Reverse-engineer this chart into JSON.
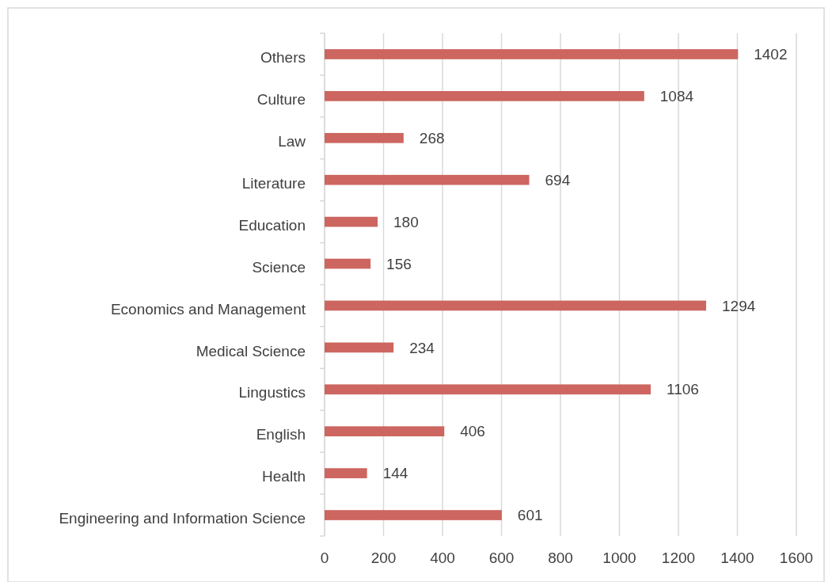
{
  "chart_data": {
    "type": "bar",
    "orientation": "horizontal",
    "categories": [
      "Others",
      "Culture",
      "Law",
      "Literature",
      "Education",
      "Science",
      "Economics and Management",
      "Medical Science",
      "Lingustics",
      "English",
      "Health",
      "Engineering and Information Science"
    ],
    "values": [
      1402,
      1084,
      268,
      694,
      180,
      156,
      1294,
      234,
      1106,
      406,
      144,
      601
    ],
    "color": "#cd6660",
    "xlim": [
      0,
      1600
    ],
    "xticks": [
      0,
      200,
      400,
      600,
      800,
      1000,
      1200,
      1400,
      1600
    ],
    "grid": "x",
    "data_labels": true
  }
}
